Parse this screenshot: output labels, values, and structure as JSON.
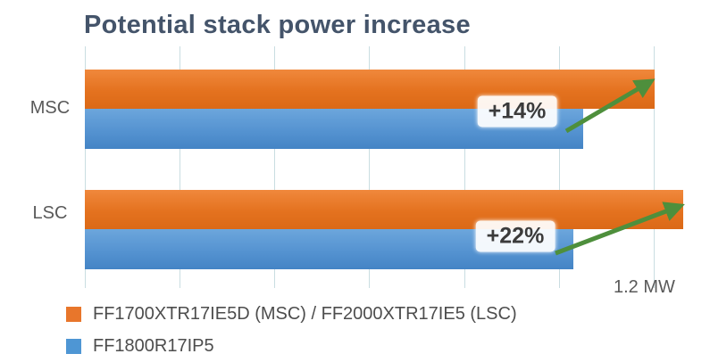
{
  "chart_data": {
    "type": "bar",
    "orientation": "horizontal",
    "title": "Potential stack power increase",
    "unit": "MW",
    "categories": [
      "MSC",
      "LSC"
    ],
    "series": [
      {
        "name": "FF1700XTR17IE5D (MSC) / FF2000XTR17IE5 (LSC)",
        "color": "#E8762B",
        "gradient": [
          "#F0883C",
          "#E4721F",
          "#DB6917"
        ],
        "values_mw": [
          1.2,
          1.26
        ]
      },
      {
        "name": "FF1800R17IP5",
        "color": "#4E96D4",
        "gradient": [
          "#6CA6DC",
          "#5593D1",
          "#4484C5"
        ],
        "values_mw": [
          1.05,
          1.03
        ]
      }
    ],
    "annotations": [
      {
        "category": "MSC",
        "label": "+14%"
      },
      {
        "category": "LSC",
        "label": "+22%"
      }
    ],
    "axis_label": "1.2 MW",
    "axis_label_value_mw": 1.2,
    "xlim_mw": [
      0,
      1.32
    ],
    "gridlines_mw": [
      0,
      0.2,
      0.4,
      0.6,
      0.8,
      1.0,
      1.2
    ],
    "grid": true,
    "legend_position": "bottom",
    "colors": {
      "title": "#44546A",
      "gridline": "#C9DDE1",
      "arrow": "#4E8F3C",
      "text": "#595959",
      "badge_text": "#3B3B3B",
      "legend_text": "#4D4D4D",
      "background": "#FFFFFF"
    }
  }
}
